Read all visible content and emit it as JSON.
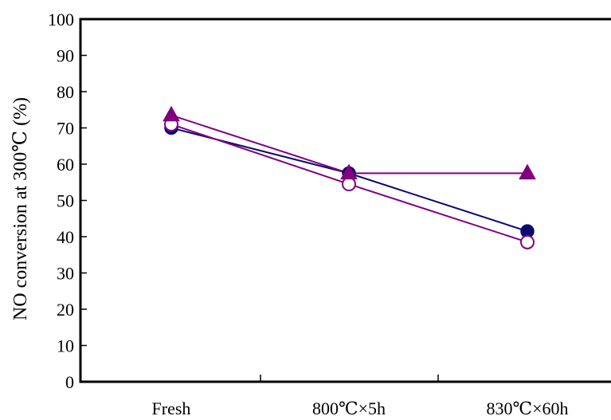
{
  "chart_data": {
    "type": "line",
    "title": "",
    "xlabel": "",
    "ylabel": "NO conversion at 300℃ (%)",
    "categories": [
      "Fresh",
      "800℃×5h",
      "830℃×60h"
    ],
    "ylim": [
      0,
      100
    ],
    "yticks": [
      0,
      10,
      20,
      30,
      40,
      50,
      60,
      70,
      80,
      90,
      100
    ],
    "grid": false,
    "legend": "none",
    "series": [
      {
        "marker": "filled-circle",
        "color": "#0a0a6e",
        "values": [
          70,
          57.5,
          41.5
        ]
      },
      {
        "marker": "open-circle",
        "color": "#800080",
        "values": [
          71,
          54.5,
          38.5
        ]
      },
      {
        "marker": "filled-triangle",
        "color": "#800080",
        "values": [
          73.5,
          57.5,
          57.5
        ]
      }
    ]
  }
}
